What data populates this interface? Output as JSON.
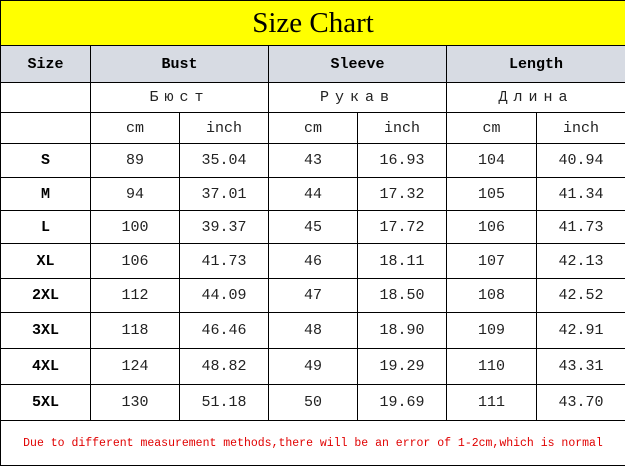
{
  "title": "Size Chart",
  "colors": {
    "title_bg": "#ffff00",
    "header_bg": "#d7dbe3",
    "note": "#e00000"
  },
  "headers": {
    "size": "Size",
    "bust": "Bust",
    "sleeve": "Sleeve",
    "length": "Length"
  },
  "headers_ru": {
    "bust": "Бюст",
    "sleeve": "Рукав",
    "length": "Длина"
  },
  "units": {
    "cm": "cm",
    "inch": "inch"
  },
  "note": "Due to different measurement methods,there will be an error of 1-2cm,which is normal",
  "chart_data": {
    "type": "table",
    "title": "Size Chart",
    "columns": [
      "Size",
      "Bust cm",
      "Bust inch",
      "Sleeve cm",
      "Sleeve inch",
      "Length cm",
      "Length inch"
    ],
    "rows": [
      [
        "S",
        "89",
        "35.04",
        "43",
        "16.93",
        "104",
        "40.94"
      ],
      [
        "M",
        "94",
        "37.01",
        "44",
        "17.32",
        "105",
        "41.34"
      ],
      [
        "L",
        "100",
        "39.37",
        "45",
        "17.72",
        "106",
        "41.73"
      ],
      [
        "XL",
        "106",
        "41.73",
        "46",
        "18.11",
        "107",
        "42.13"
      ],
      [
        "2XL",
        "112",
        "44.09",
        "47",
        "18.50",
        "108",
        "42.52"
      ],
      [
        "3XL",
        "118",
        "46.46",
        "48",
        "18.90",
        "109",
        "42.91"
      ],
      [
        "4XL",
        "124",
        "48.82",
        "49",
        "19.29",
        "110",
        "43.31"
      ],
      [
        "5XL",
        "130",
        "51.18",
        "50",
        "19.69",
        "111",
        "43.70"
      ]
    ]
  }
}
